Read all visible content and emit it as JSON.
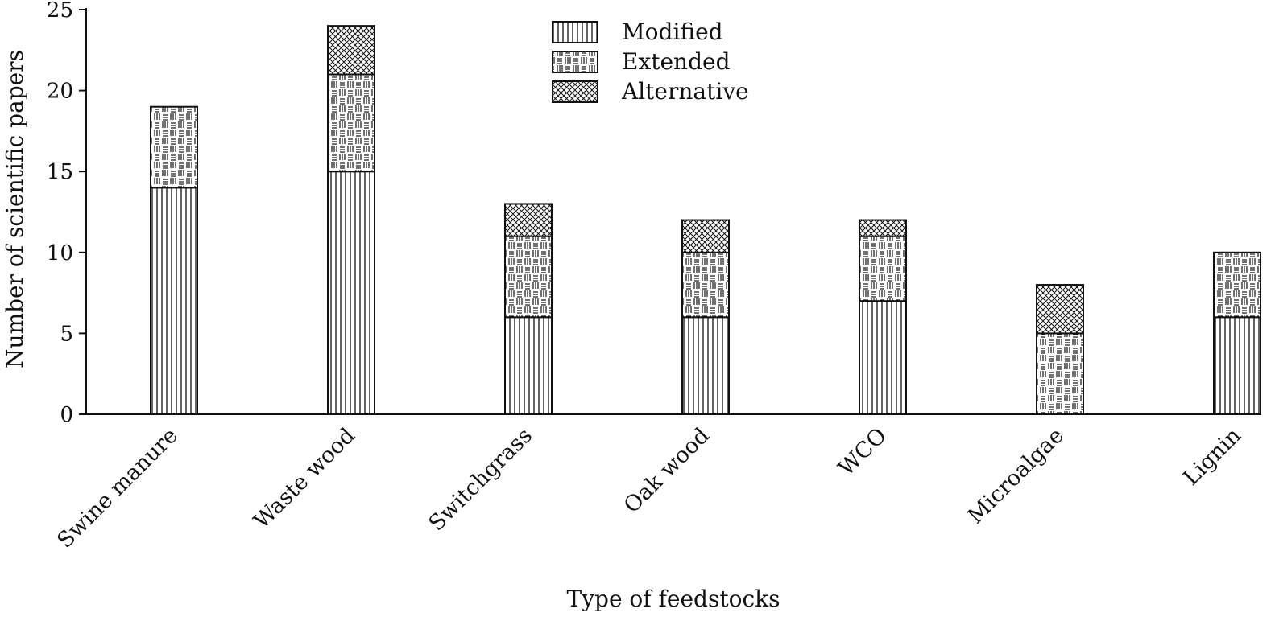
{
  "chart_data": {
    "type": "bar",
    "stacked": true,
    "title": "",
    "xlabel": "Type of feedstocks",
    "ylabel": "Number of scientific papers",
    "ylim": [
      0,
      25
    ],
    "yticks": [
      0,
      5,
      10,
      15,
      20,
      25
    ],
    "grid": false,
    "legend_position": "top-center",
    "categories": [
      "Swine manure",
      "Waste wood",
      "Switchgrass",
      "Oak wood",
      "WCO",
      "Microalgae",
      "Lignin"
    ],
    "series": [
      {
        "name": "Modified",
        "pattern": "vertical-lines",
        "values": [
          14,
          15,
          6,
          6,
          7,
          0,
          6
        ]
      },
      {
        "name": "Extended",
        "pattern": "dash-grid",
        "values": [
          5,
          6,
          5,
          4,
          4,
          5,
          4
        ]
      },
      {
        "name": "Alternative",
        "pattern": "crosshatch",
        "values": [
          0,
          3,
          2,
          2,
          1,
          3,
          0
        ]
      }
    ]
  }
}
